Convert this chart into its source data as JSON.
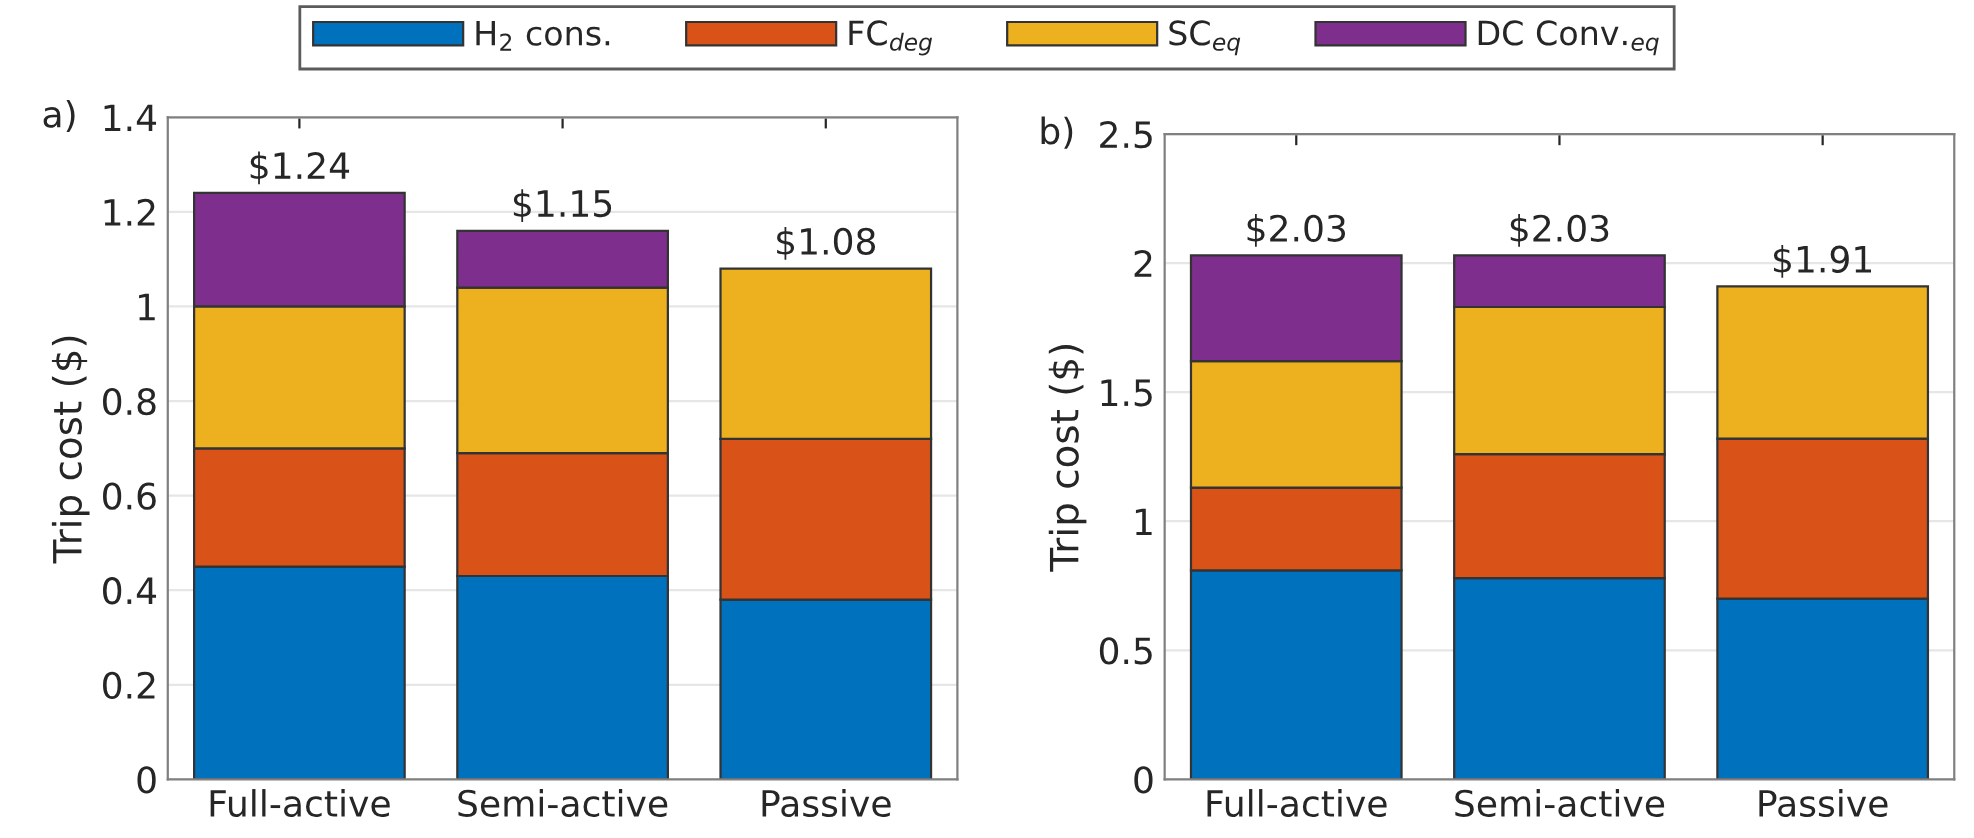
{
  "chart_data": [
    {
      "type": "bar",
      "stacked": true,
      "categories": [
        "Full-active",
        "Semi-active",
        "Passive"
      ],
      "ylabel": "Trip cost ($)",
      "ylim": [
        0,
        1.4
      ],
      "yticks": [
        0,
        0.2,
        0.4,
        0.6,
        0.8,
        1,
        1.2,
        1.4
      ],
      "grid": "y",
      "legend": "top",
      "annotations": [
        "a)"
      ],
      "totals": [
        "$1.24",
        "$1.15",
        "$1.08"
      ],
      "series": [
        {
          "name": "H$_{2}$ cons.",
          "color": "#0072bd",
          "values": [
            0.45,
            0.43,
            0.38
          ]
        },
        {
          "name": "FC$_{deg}$",
          "color": "#d95319",
          "values": [
            0.25,
            0.26,
            0.34
          ]
        },
        {
          "name": "SC$_{eq}$",
          "color": "#edb120",
          "values": [
            0.3,
            0.35,
            0.36
          ]
        },
        {
          "name": "DC Conv.$_{eq}$",
          "color": "#7e2f8e",
          "values": [
            0.24,
            0.12,
            null
          ]
        }
      ]
    },
    {
      "type": "bar",
      "stacked": true,
      "categories": [
        "Full-active",
        "Semi-active",
        "Passive"
      ],
      "ylabel": "Trip cost ($)",
      "ylim": [
        0,
        2.5
      ],
      "yticks": [
        0,
        0.5,
        1,
        1.5,
        2,
        2.5
      ],
      "grid": "y",
      "annotations": [
        "b)"
      ],
      "totals": [
        "$2.03",
        "$2.03",
        "$1.91"
      ],
      "series": [
        {
          "color": "#0072bd",
          "values": [
            0.81,
            0.78,
            0.7
          ]
        },
        {
          "color": "#d95319",
          "values": [
            0.32,
            0.48,
            0.62
          ]
        },
        {
          "color": "#edb120",
          "values": [
            0.49,
            0.57,
            0.59
          ]
        },
        {
          "color": "#7e2f8e",
          "values": [
            0.41,
            0.2,
            null
          ]
        }
      ]
    }
  ]
}
